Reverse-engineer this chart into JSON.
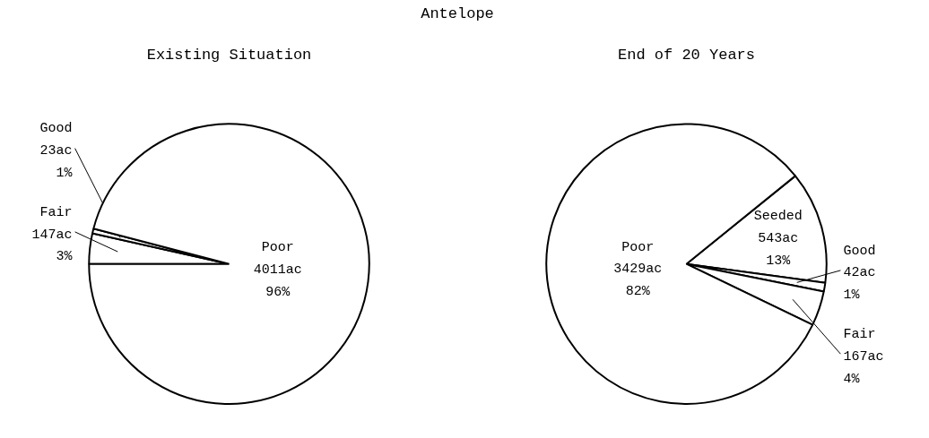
{
  "chart_data": [
    {
      "type": "pie",
      "title": "Existing Situation",
      "annotations": [
        "Antelope"
      ],
      "categories": [
        "Fair",
        "Good",
        "Poor"
      ],
      "values": [
        147,
        23,
        4011
      ],
      "colors": [
        "#ffffff",
        "#ffffff",
        "#ffffff"
      ],
      "value_labels": [
        "147ac\n3%",
        "23ac\n1%",
        "4011ac\n96%"
      ]
    },
    {
      "type": "pie",
      "title": "End of 20 Years",
      "categories": [
        "Seeded",
        "Good",
        "Fair",
        "Poor"
      ],
      "values": [
        543,
        42,
        167,
        3429
      ],
      "colors": [
        "#ffffff",
        "#ffffff",
        "#ffffff",
        "#ffffff"
      ],
      "value_labels": [
        "543ac\n13%",
        "42ac\n1%",
        "167ac\n4%",
        "3429ac\n82%"
      ]
    }
  ]
}
